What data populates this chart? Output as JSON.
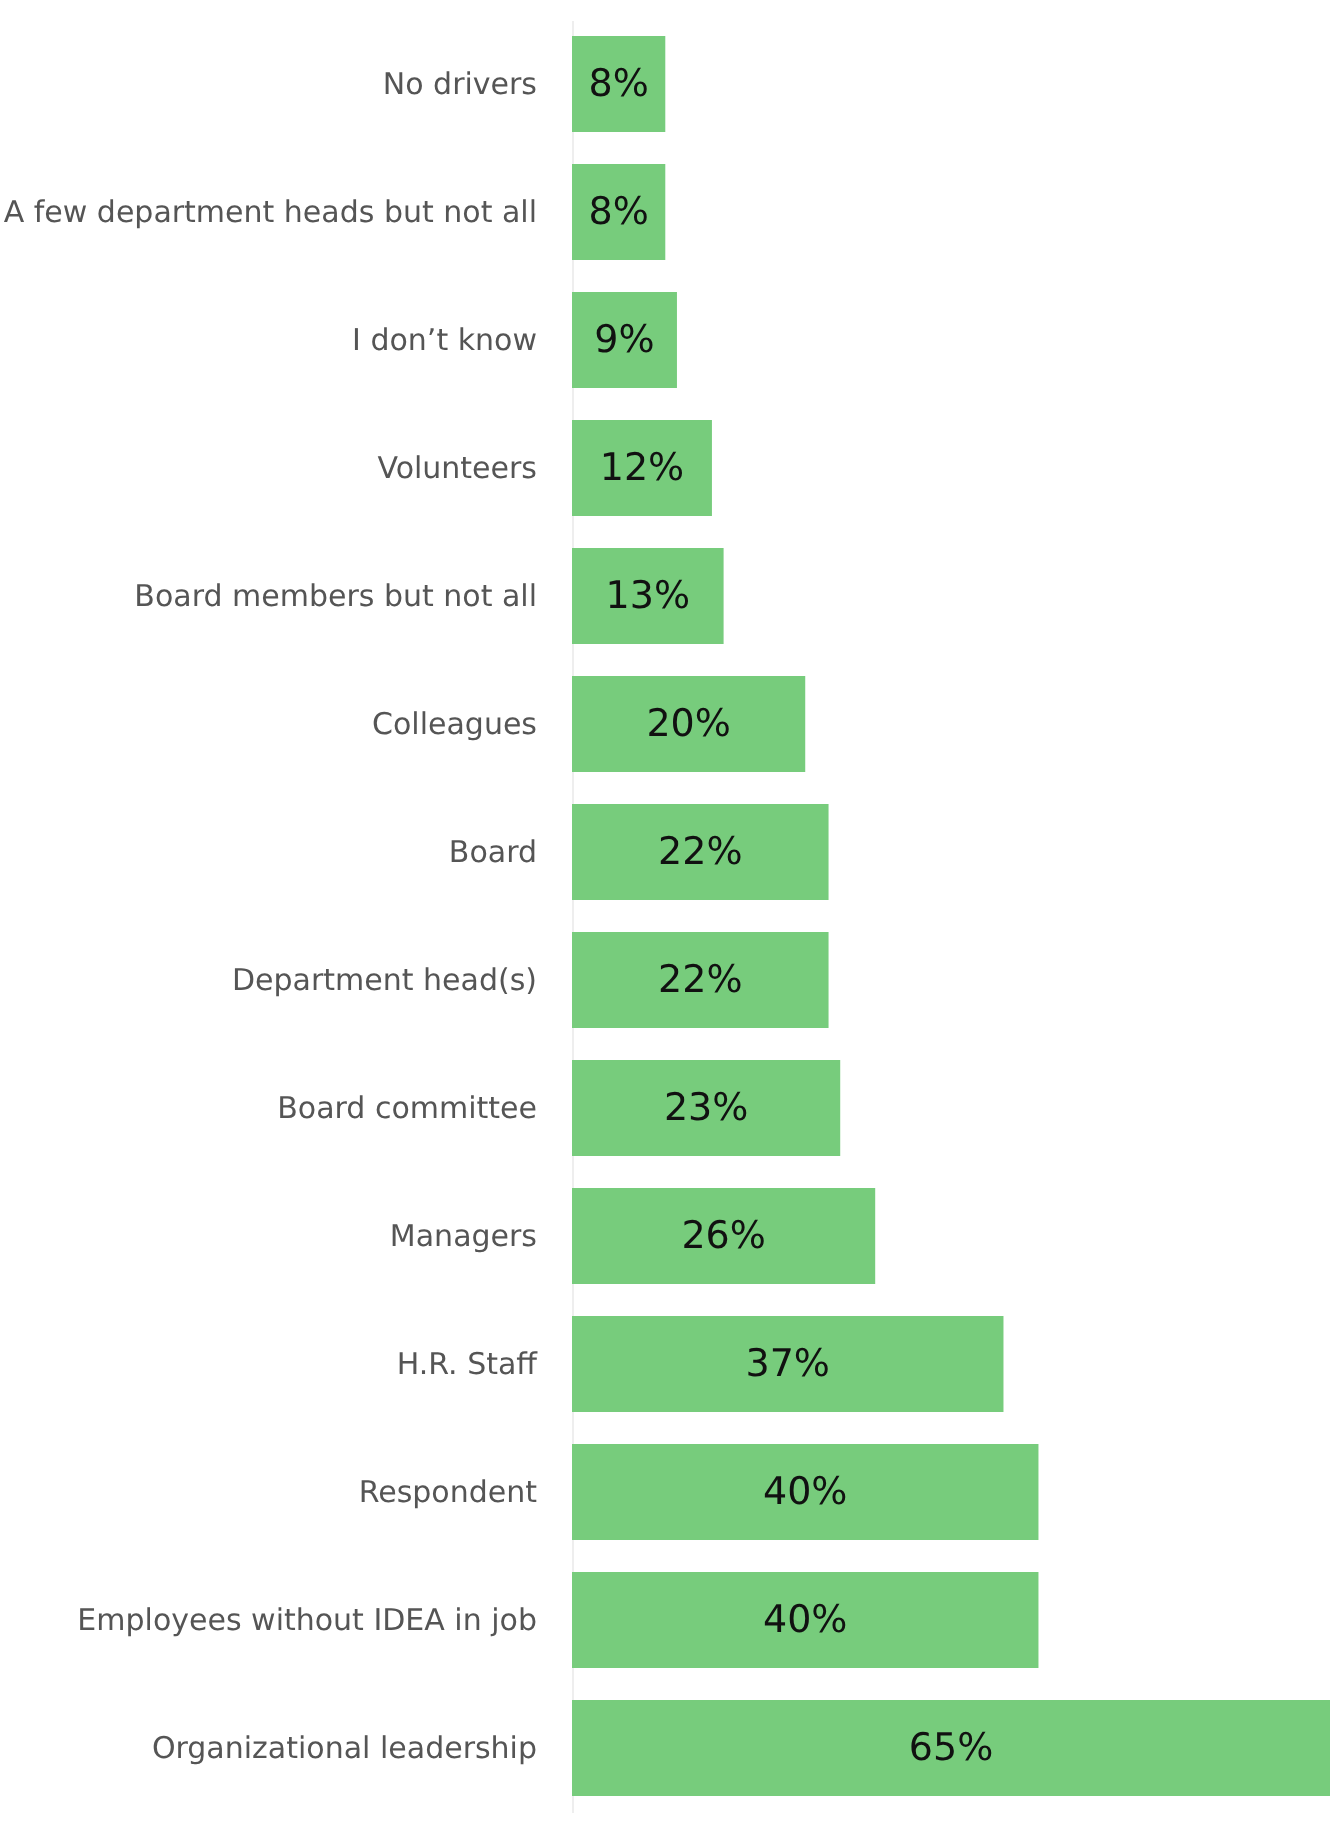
{
  "chart_data": {
    "type": "bar",
    "orientation": "horizontal",
    "categories": [
      "No drivers",
      "A few department heads but not all",
      "I don’t know",
      "Volunteers",
      "Board members but not all",
      "Colleagues",
      "Board",
      "Department head(s)",
      "Board committee",
      "Managers",
      "H.R. Staff",
      "Respondent",
      "Employees without IDEA in job",
      "Organizational leadership"
    ],
    "values": [
      8,
      8,
      9,
      12,
      13,
      20,
      22,
      22,
      23,
      26,
      37,
      40,
      40,
      65
    ],
    "value_labels": [
      "8%",
      "8%",
      "9%",
      "12%",
      "13%",
      "20%",
      "22%",
      "22%",
      "23%",
      "26%",
      "37%",
      "40%",
      "40%",
      "65%"
    ],
    "color": "#77cc7c"
  }
}
